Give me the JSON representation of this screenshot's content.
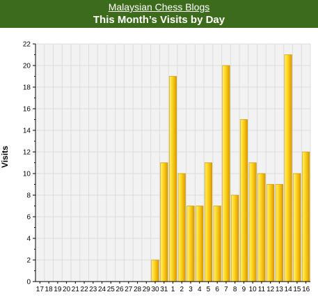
{
  "header": {
    "site_link": "Malaysian Chess Blogs",
    "title": "This Month’s Visits by Day"
  },
  "chart_data": {
    "type": "bar",
    "title": "This Month’s Visits by Day",
    "xlabel": "",
    "ylabel": "Visits",
    "ylim": [
      0,
      22
    ],
    "yticks": [
      0,
      2,
      4,
      6,
      8,
      10,
      12,
      14,
      16,
      18,
      20,
      22
    ],
    "grid": true,
    "categories": [
      "17",
      "18",
      "19",
      "20",
      "21",
      "22",
      "23",
      "24",
      "25",
      "26",
      "27",
      "28",
      "29",
      "30",
      "31",
      "1",
      "2",
      "3",
      "4",
      "5",
      "6",
      "7",
      "8",
      "9",
      "10",
      "11",
      "12",
      "13",
      "14",
      "15",
      "16"
    ],
    "values": [
      0,
      0,
      0,
      0,
      0,
      0,
      0,
      0,
      0,
      0,
      0,
      0,
      0,
      2,
      11,
      19,
      10,
      7,
      7,
      11,
      7,
      20,
      8,
      15,
      11,
      10,
      9,
      9,
      21,
      10,
      12
    ],
    "colors": {
      "bar_light": "#fff27a",
      "bar_mid": "#ffd21a",
      "bar_dark": "#d89a00",
      "plot_bg": "#f2f2f2",
      "grid": "#dcdcdc",
      "header_bg": "#3d6b1c"
    }
  }
}
